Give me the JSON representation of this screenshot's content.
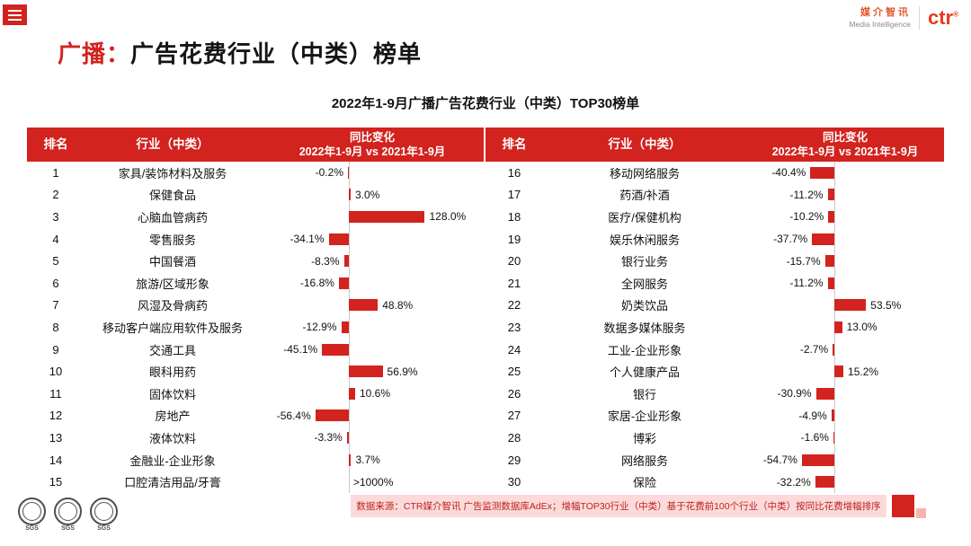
{
  "colors": {
    "accent": "#d2231e",
    "header_bg": "#d2231e",
    "bar": "#d2231e",
    "footer_bg": "#fcdada",
    "footer_text": "#bc231d",
    "axis_line": "#c9c9c9"
  },
  "topbar": {
    "logo_cn": "媒介智讯",
    "logo_en": "Media Intelligence",
    "logo_ctr": "ctr",
    "logo_reg": "®"
  },
  "title": {
    "highlight": "广播：",
    "rest": "广告花费行业（中类）榜单"
  },
  "subtitle": "2022年1-9月广播广告花费行业（中类）TOP30榜单",
  "table": {
    "header": {
      "rank": "排名",
      "industry": "行业（中类）",
      "change1": "同比变化",
      "change2": "2022年1-9月 vs 2021年1-9月"
    }
  },
  "chart_data": {
    "type": "bar",
    "orientation": "horizontal",
    "title": "2022年1-9月广播广告花费行业（中类）TOP30榜单",
    "value_unit": "%",
    "legend": "同比变化 2022年1-9月 vs 2021年1-9月",
    "groups": [
      {
        "name": "ranks 1-15",
        "rows": [
          {
            "rank": 1,
            "industry": "家具/装饰材料及服务",
            "value": -0.2,
            "label": "-0.2%"
          },
          {
            "rank": 2,
            "industry": "保健食品",
            "value": 3.0,
            "label": "3.0%"
          },
          {
            "rank": 3,
            "industry": "心脑血管病药",
            "value": 128.0,
            "label": "128.0%"
          },
          {
            "rank": 4,
            "industry": "零售服务",
            "value": -34.1,
            "label": "-34.1%"
          },
          {
            "rank": 5,
            "industry": "中国餐酒",
            "value": -8.3,
            "label": "-8.3%"
          },
          {
            "rank": 6,
            "industry": "旅游/区域形象",
            "value": -16.8,
            "label": "-16.8%"
          },
          {
            "rank": 7,
            "industry": "风湿及骨病药",
            "value": 48.8,
            "label": "48.8%"
          },
          {
            "rank": 8,
            "industry": "移动客户端应用软件及服务",
            "value": -12.9,
            "label": "-12.9%"
          },
          {
            "rank": 9,
            "industry": "交通工具",
            "value": -45.1,
            "label": "-45.1%"
          },
          {
            "rank": 10,
            "industry": "眼科用药",
            "value": 56.9,
            "label": "56.9%"
          },
          {
            "rank": 11,
            "industry": "固体饮料",
            "value": 10.6,
            "label": "10.6%"
          },
          {
            "rank": 12,
            "industry": "房地产",
            "value": -56.4,
            "label": "-56.4%"
          },
          {
            "rank": 13,
            "industry": "液体饮料",
            "value": -3.3,
            "label": "-3.3%"
          },
          {
            "rank": 14,
            "industry": "金融业-企业形象",
            "value": 3.7,
            "label": "3.7%"
          },
          {
            "rank": 15,
            "industry": "口腔清洁用品/牙膏",
            "value": 1000,
            "label": ">1000%",
            "bar_hidden": true
          }
        ]
      },
      {
        "name": "ranks 16-30",
        "rows": [
          {
            "rank": 16,
            "industry": "移动网络服务",
            "value": -40.4,
            "label": "-40.4%"
          },
          {
            "rank": 17,
            "industry": "药酒/补酒",
            "value": -11.2,
            "label": "-11.2%"
          },
          {
            "rank": 18,
            "industry": "医疗/保健机构",
            "value": -10.2,
            "label": "-10.2%"
          },
          {
            "rank": 19,
            "industry": "娱乐休闲服务",
            "value": -37.7,
            "label": "-37.7%"
          },
          {
            "rank": 20,
            "industry": "银行业务",
            "value": -15.7,
            "label": "-15.7%"
          },
          {
            "rank": 21,
            "industry": "全网服务",
            "value": -11.2,
            "label": "-11.2%"
          },
          {
            "rank": 22,
            "industry": "奶类饮品",
            "value": 53.5,
            "label": "53.5%"
          },
          {
            "rank": 23,
            "industry": "数据多媒体服务",
            "value": 13.0,
            "label": "13.0%"
          },
          {
            "rank": 24,
            "industry": "工业-企业形象",
            "value": -2.7,
            "label": "-2.7%"
          },
          {
            "rank": 25,
            "industry": "个人健康产品",
            "value": 15.2,
            "label": "15.2%"
          },
          {
            "rank": 26,
            "industry": "银行",
            "value": -30.9,
            "label": "-30.9%"
          },
          {
            "rank": 27,
            "industry": "家居-企业形象",
            "value": -4.9,
            "label": "-4.9%"
          },
          {
            "rank": 28,
            "industry": "博彩",
            "value": -1.6,
            "label": "-1.6%"
          },
          {
            "rank": 29,
            "industry": "网络服务",
            "value": -54.7,
            "label": "-54.7%"
          },
          {
            "rank": 30,
            "industry": "保险",
            "value": -32.2,
            "label": "-32.2%"
          }
        ]
      }
    ]
  },
  "footer": {
    "source": "数据来源：CTR媒介智讯 广告监测数据库AdEx；增幅TOP30行业（中类）基于花费前100个行业（中类）按同比花费增幅排序",
    "seal_label": "SGS"
  }
}
